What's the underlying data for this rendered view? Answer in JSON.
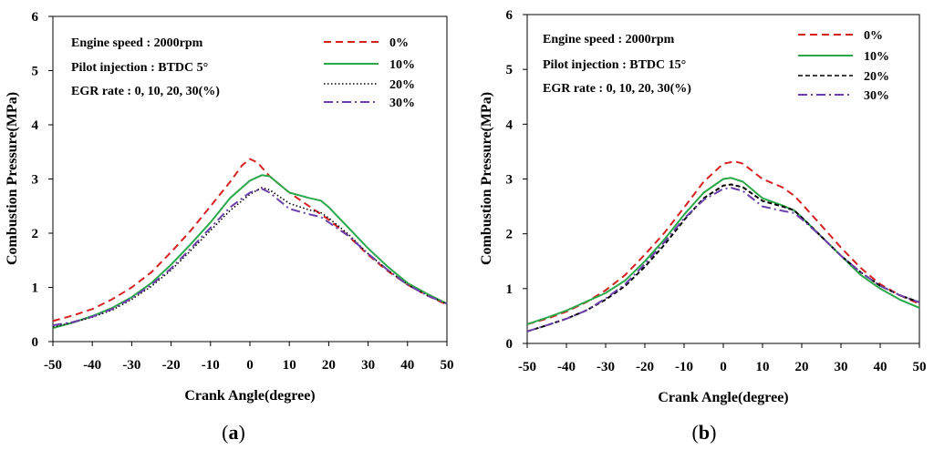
{
  "chart_data": [
    {
      "type": "line",
      "id": "a",
      "caption_open": "(",
      "caption_letter": "a",
      "caption_close": ")",
      "xlabel": "Crank Angle(degree)",
      "ylabel": "Combustion Pressure(MPa)",
      "xlim": [
        -50,
        50
      ],
      "ylim": [
        0,
        6
      ],
      "xticks": [
        -50,
        -40,
        -30,
        -20,
        -10,
        0,
        10,
        20,
        30,
        40,
        50
      ],
      "yticks": [
        0,
        1,
        2,
        3,
        4,
        5,
        6
      ],
      "annotations": [
        "Engine speed : 2000rpm",
        "Pilot injection : BTDC  5°",
        "EGR rate : 0, 10, 20, 30(%)"
      ],
      "series": [
        {
          "name": "0%",
          "color": "#d62020",
          "dash": "dashed",
          "x": [
            -50,
            -45,
            -40,
            -35,
            -30,
            -25,
            -20,
            -15,
            -10,
            -5,
            -2,
            0,
            2,
            5,
            10,
            15,
            20,
            25,
            30,
            35,
            40,
            45,
            50
          ],
          "y": [
            0.38,
            0.48,
            0.6,
            0.78,
            1.0,
            1.28,
            1.65,
            2.05,
            2.5,
            2.95,
            3.25,
            3.37,
            3.3,
            3.05,
            2.75,
            2.5,
            2.25,
            1.95,
            1.6,
            1.3,
            1.05,
            0.85,
            0.68
          ]
        },
        {
          "name": "10%",
          "color": "#2aa84a",
          "dash": "solid",
          "x": [
            -50,
            -45,
            -40,
            -35,
            -30,
            -25,
            -20,
            -15,
            -10,
            -5,
            0,
            3,
            5,
            10,
            15,
            18,
            20,
            25,
            30,
            35,
            40,
            45,
            50
          ],
          "y": [
            0.25,
            0.35,
            0.47,
            0.62,
            0.82,
            1.08,
            1.42,
            1.8,
            2.2,
            2.65,
            2.97,
            3.07,
            3.05,
            2.75,
            2.65,
            2.6,
            2.48,
            2.1,
            1.72,
            1.38,
            1.08,
            0.88,
            0.7
          ]
        },
        {
          "name": "20%",
          "color": "#000000",
          "dash": "dotted",
          "x": [
            -50,
            -45,
            -40,
            -35,
            -30,
            -25,
            -20,
            -15,
            -10,
            -5,
            0,
            3,
            5,
            10,
            15,
            18,
            20,
            25,
            30,
            35,
            40,
            45,
            50
          ],
          "y": [
            0.27,
            0.35,
            0.45,
            0.58,
            0.78,
            1.02,
            1.32,
            1.68,
            2.05,
            2.42,
            2.72,
            2.84,
            2.8,
            2.55,
            2.43,
            2.38,
            2.28,
            1.98,
            1.62,
            1.32,
            1.05,
            0.85,
            0.7
          ]
        },
        {
          "name": "30%",
          "color": "#6a3faa",
          "dash": "dashdot",
          "x": [
            -50,
            -45,
            -40,
            -35,
            -30,
            -25,
            -20,
            -15,
            -10,
            -5,
            0,
            3,
            5,
            10,
            15,
            18,
            20,
            25,
            30,
            35,
            40,
            45,
            50
          ],
          "y": [
            0.3,
            0.36,
            0.46,
            0.6,
            0.8,
            1.05,
            1.35,
            1.72,
            2.1,
            2.48,
            2.75,
            2.82,
            2.75,
            2.45,
            2.35,
            2.3,
            2.2,
            1.95,
            1.62,
            1.32,
            1.05,
            0.85,
            0.7
          ]
        }
      ]
    },
    {
      "type": "line",
      "id": "b",
      "caption_open": "(",
      "caption_letter": "b",
      "caption_close": ")",
      "xlabel": "Crank Angle(degree)",
      "ylabel": "Combustion Pressure(MPa)",
      "xlim": [
        -50,
        50
      ],
      "ylim": [
        0,
        6
      ],
      "xticks": [
        -50,
        -40,
        -30,
        -20,
        -10,
        0,
        10,
        20,
        30,
        40,
        50
      ],
      "yticks": [
        0,
        1,
        2,
        3,
        4,
        5,
        6
      ],
      "annotations": [
        "Engine speed : 2000rpm",
        "Pilot injection : BTDC  15°",
        "EGR rate : 0, 10, 20, 30(%)"
      ],
      "series": [
        {
          "name": "0%",
          "color": "#d62020",
          "dash": "dashed",
          "x": [
            -50,
            -45,
            -40,
            -35,
            -30,
            -25,
            -20,
            -15,
            -10,
            -5,
            0,
            3,
            5,
            10,
            15,
            18,
            20,
            25,
            30,
            35,
            40,
            45,
            50
          ],
          "y": [
            0.35,
            0.45,
            0.58,
            0.75,
            0.97,
            1.25,
            1.62,
            2.02,
            2.48,
            2.95,
            3.28,
            3.32,
            3.28,
            3.0,
            2.85,
            2.7,
            2.55,
            2.15,
            1.75,
            1.38,
            1.08,
            0.88,
            0.72
          ]
        },
        {
          "name": "10%",
          "color": "#2aa84a",
          "dash": "solid",
          "x": [
            -50,
            -45,
            -40,
            -35,
            -30,
            -25,
            -20,
            -15,
            -10,
            -5,
            0,
            2,
            5,
            10,
            15,
            18,
            20,
            25,
            30,
            35,
            40,
            45,
            50
          ],
          "y": [
            0.35,
            0.47,
            0.6,
            0.76,
            0.92,
            1.15,
            1.5,
            1.9,
            2.35,
            2.75,
            3.0,
            3.02,
            2.95,
            2.65,
            2.52,
            2.43,
            2.3,
            1.95,
            1.6,
            1.25,
            1.0,
            0.8,
            0.65
          ]
        },
        {
          "name": "20%",
          "color": "#000000",
          "dash": "dashed",
          "x": [
            -50,
            -45,
            -40,
            -35,
            -30,
            -25,
            -20,
            -15,
            -10,
            -5,
            0,
            2,
            5,
            10,
            15,
            18,
            20,
            25,
            30,
            35,
            40,
            45,
            50
          ],
          "y": [
            0.22,
            0.33,
            0.45,
            0.6,
            0.8,
            1.05,
            1.4,
            1.8,
            2.25,
            2.65,
            2.88,
            2.9,
            2.85,
            2.6,
            2.5,
            2.43,
            2.3,
            1.95,
            1.6,
            1.3,
            1.05,
            0.88,
            0.75
          ]
        },
        {
          "name": "30%",
          "color": "#6a3faa",
          "dash": "dashdot",
          "x": [
            -50,
            -45,
            -40,
            -35,
            -30,
            -25,
            -20,
            -15,
            -10,
            -5,
            0,
            2,
            5,
            10,
            15,
            18,
            20,
            25,
            30,
            35,
            40,
            45,
            50
          ],
          "y": [
            0.22,
            0.33,
            0.45,
            0.6,
            0.82,
            1.08,
            1.45,
            1.85,
            2.28,
            2.62,
            2.82,
            2.84,
            2.78,
            2.5,
            2.42,
            2.38,
            2.27,
            1.95,
            1.6,
            1.3,
            1.05,
            0.88,
            0.75
          ]
        }
      ]
    }
  ]
}
